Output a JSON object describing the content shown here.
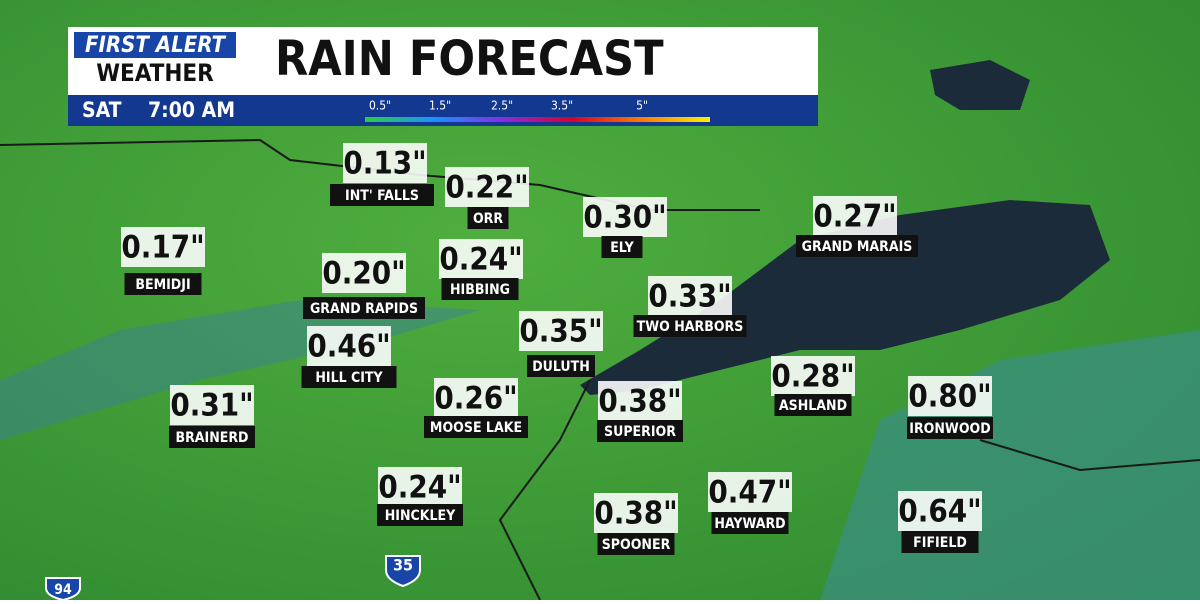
{
  "header": {
    "logo_top": "FIRST ALERT",
    "logo_bottom": "WEATHER",
    "title": "RAIN FORECAST",
    "day": "SAT",
    "time": "7:00 AM"
  },
  "legend": {
    "ticks": [
      "0.5\"",
      "1.5\"",
      "2.5\"",
      "3.5\"",
      "5\""
    ]
  },
  "highways": [
    "35",
    "94"
  ],
  "cities": [
    {
      "value": "0.13\"",
      "label": "INT' FALLS"
    },
    {
      "value": "0.22\"",
      "label": "ORR"
    },
    {
      "value": "0.30\"",
      "label": "ELY"
    },
    {
      "value": "0.27\"",
      "label": "GRAND MARAIS"
    },
    {
      "value": "0.17\"",
      "label": "BEMIDJI"
    },
    {
      "value": "0.24\"",
      "label": "HIBBING"
    },
    {
      "value": "0.20\"",
      "label": "GRAND RAPIDS"
    },
    {
      "value": "0.33\"",
      "label": "TWO HARBORS"
    },
    {
      "value": "0.35\"",
      "label": "DULUTH"
    },
    {
      "value": "0.46\"",
      "label": "HILL CITY"
    },
    {
      "value": "0.28\"",
      "label": "ASHLAND"
    },
    {
      "value": "0.80\"",
      "label": "IRONWOOD"
    },
    {
      "value": "0.31\"",
      "label": "BRAINERD"
    },
    {
      "value": "0.26\"",
      "label": "MOOSE LAKE"
    },
    {
      "value": "0.38\"",
      "label": "SUPERIOR"
    },
    {
      "value": "0.24\"",
      "label": "HINCKLEY"
    },
    {
      "value": "0.47\"",
      "label": "HAYWARD"
    },
    {
      "value": "0.38\"",
      "label": "SPOONER"
    },
    {
      "value": "0.64\"",
      "label": "FIFIELD"
    }
  ]
}
